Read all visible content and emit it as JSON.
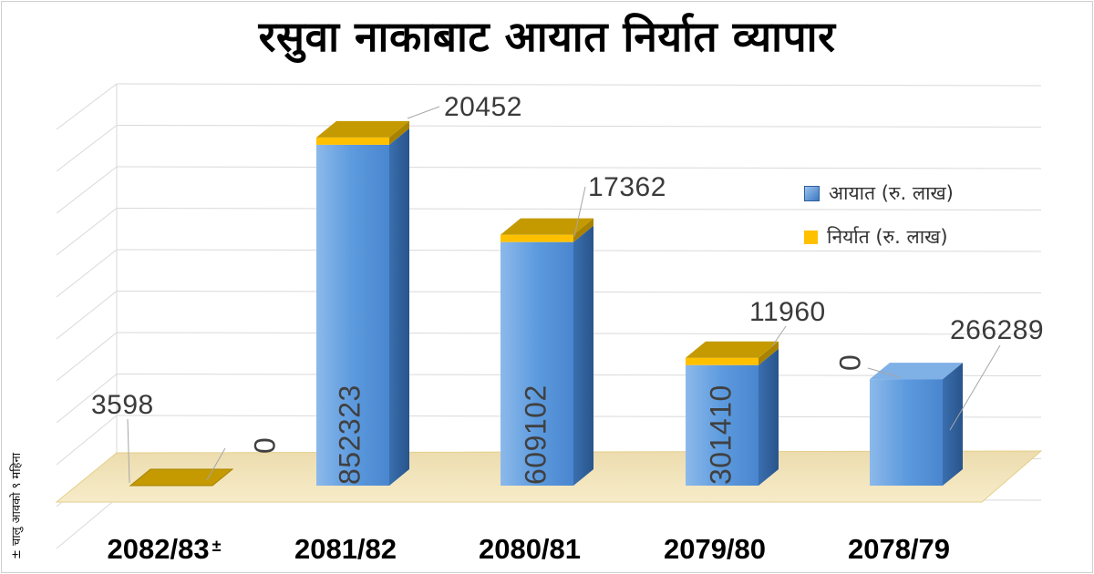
{
  "title": "रसुवा नाकाबाट आयात निर्यात व्यापार",
  "footnote": "± चालु आवको ९ महिना",
  "legend": {
    "import_label": "आयात (रु. लाख)",
    "export_label": "निर्यात (रु. लाख)"
  },
  "colors": {
    "import_front": "#4e8fd6",
    "import_side": "#2e5f9a",
    "export_top": "#c49a00",
    "export_edge": "#ffc000",
    "floor": "#f3e4b8"
  },
  "chart_data": {
    "type": "bar",
    "categories": [
      "2082/83±",
      "2081/82",
      "2080/81",
      "2079/80",
      "2078/79"
    ],
    "series": [
      {
        "name": "आयात (रु. लाख)",
        "values": [
          3598,
          852323,
          609102,
          301410,
          266289
        ]
      },
      {
        "name": "निर्यात (रु. लाख)",
        "values": [
          0,
          20452,
          17362,
          11960,
          0
        ]
      }
    ],
    "title": "रसुवा नाकाबाट आयात निर्यात व्यापार",
    "xlabel": "",
    "ylabel": "",
    "ylim": [
      0,
      900000
    ],
    "grid": true,
    "legend_position": "right",
    "three_d": true,
    "label_pairs": [
      {
        "outside": "3598",
        "inside": "0"
      },
      {
        "outside": "20452",
        "inside": "852323"
      },
      {
        "outside": "17362",
        "inside": "609102"
      },
      {
        "outside": "11960",
        "inside": "301410"
      },
      {
        "outside": "266289",
        "inside": "0"
      }
    ]
  }
}
